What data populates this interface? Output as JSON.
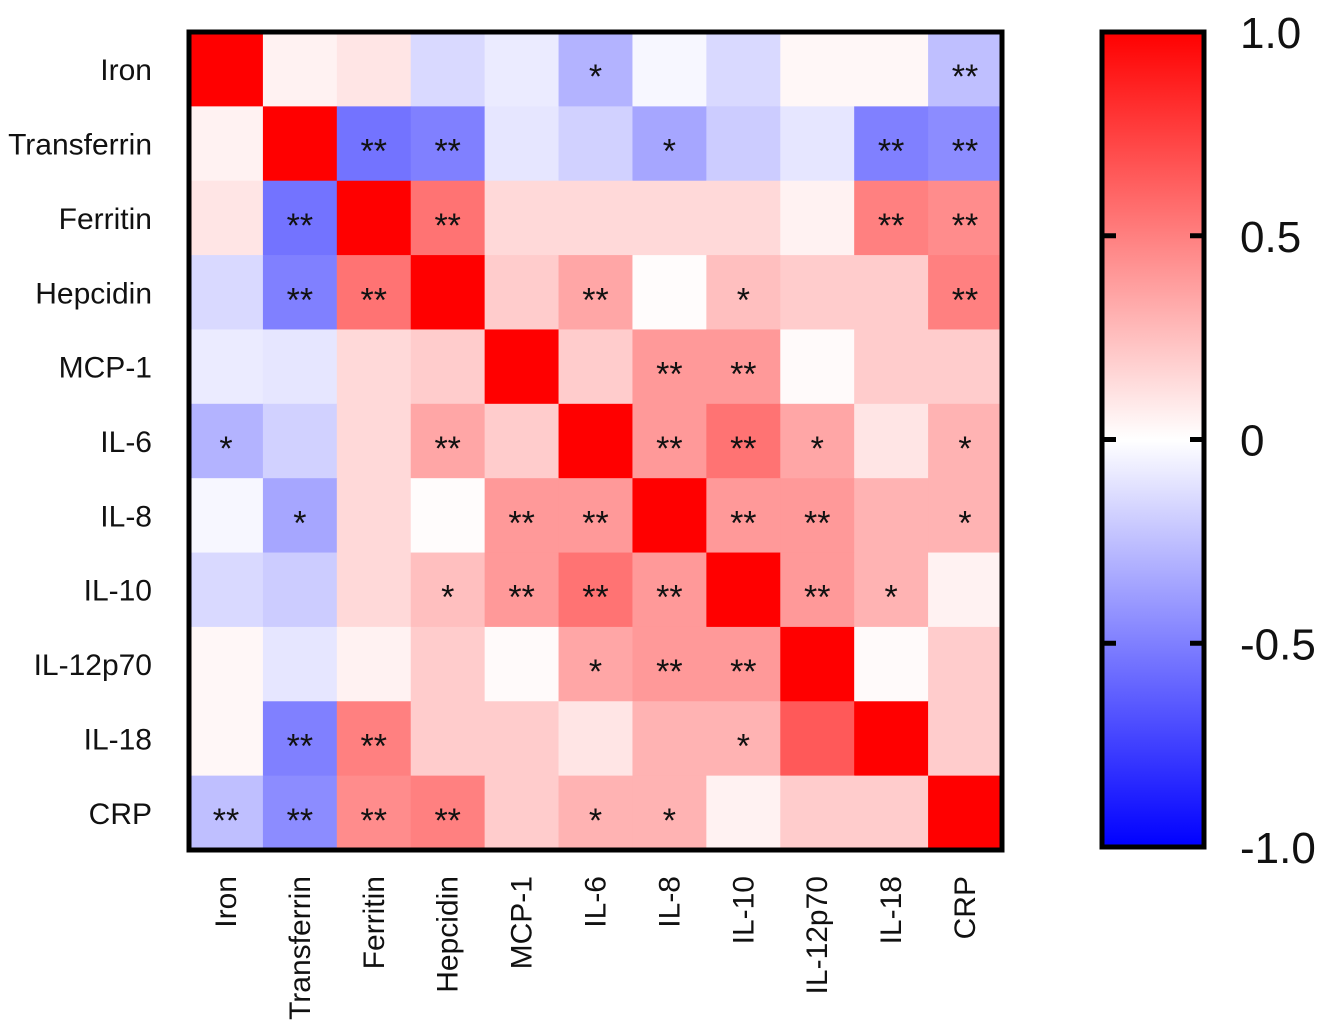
{
  "chart_data": {
    "type": "heatmap",
    "title": "",
    "rows": [
      "Iron",
      "Transferrin",
      "Ferritin",
      "Hepcidin",
      "MCP-1",
      "IL-6",
      "IL-8",
      "IL-10",
      "IL-12p70",
      "IL-18",
      "CRP"
    ],
    "columns": [
      "Iron",
      "Transferrin",
      "Ferritin",
      "Hepcidin",
      "MCP-1",
      "IL-6",
      "IL-8",
      "IL-10",
      "IL-12p70",
      "IL-18",
      "CRP"
    ],
    "values": [
      [
        1.0,
        0.05,
        0.1,
        -0.15,
        -0.08,
        -0.3,
        -0.03,
        -0.15,
        0.03,
        0.03,
        -0.25
      ],
      [
        0.05,
        1.0,
        -0.55,
        -0.5,
        -0.1,
        -0.18,
        -0.35,
        -0.2,
        -0.1,
        -0.5,
        -0.45
      ],
      [
        0.1,
        -0.55,
        1.0,
        0.55,
        0.15,
        0.15,
        0.15,
        0.15,
        0.05,
        0.5,
        0.45
      ],
      [
        -0.15,
        -0.5,
        0.55,
        1.0,
        0.2,
        0.35,
        0.01,
        0.25,
        0.2,
        0.2,
        0.5
      ],
      [
        -0.08,
        -0.1,
        0.15,
        0.2,
        1.0,
        0.2,
        0.4,
        0.4,
        0.02,
        0.2,
        0.2
      ],
      [
        -0.3,
        -0.18,
        0.15,
        0.35,
        0.2,
        1.0,
        0.4,
        0.55,
        0.35,
        0.1,
        0.3
      ],
      [
        -0.03,
        -0.35,
        0.15,
        0.01,
        0.4,
        0.4,
        1.0,
        0.4,
        0.4,
        0.3,
        0.3
      ],
      [
        -0.15,
        -0.2,
        0.15,
        0.25,
        0.4,
        0.55,
        0.4,
        1.0,
        0.4,
        0.3,
        0.05
      ],
      [
        0.03,
        -0.1,
        0.05,
        0.2,
        0.02,
        0.35,
        0.4,
        0.4,
        1.0,
        0.02,
        0.2
      ],
      [
        0.03,
        -0.5,
        0.5,
        0.2,
        0.2,
        0.1,
        0.3,
        0.3,
        0.65,
        1.0,
        0.2
      ],
      [
        -0.25,
        -0.45,
        0.45,
        0.5,
        0.2,
        0.3,
        0.3,
        0.05,
        0.2,
        0.2,
        1.0
      ]
    ],
    "significance": [
      [
        "",
        "",
        "",
        "",
        "",
        "*",
        "",
        "",
        "",
        "",
        "**"
      ],
      [
        "",
        "",
        "**",
        "**",
        "",
        "",
        "*",
        "",
        "",
        "**",
        "**"
      ],
      [
        "",
        "**",
        "",
        "**",
        "",
        "",
        "",
        "",
        "",
        "**",
        "**"
      ],
      [
        "",
        "**",
        "**",
        "",
        "",
        "**",
        "",
        "*",
        "",
        "",
        "**"
      ],
      [
        "",
        "",
        "",
        "",
        "",
        "",
        "**",
        "**",
        "",
        "",
        ""
      ],
      [
        "*",
        "",
        "",
        "**",
        "",
        "",
        "**",
        "**",
        "*",
        "",
        "*"
      ],
      [
        "",
        "*",
        "",
        "",
        "**",
        "**",
        "",
        "**",
        "**",
        "",
        "*"
      ],
      [
        "",
        "",
        "",
        "*",
        "**",
        "**",
        "**",
        "",
        "**",
        "*",
        ""
      ],
      [
        "",
        "",
        "",
        "",
        "",
        "*",
        "**",
        "**",
        "",
        "",
        ""
      ],
      [
        "",
        "**",
        "**",
        "",
        "",
        "",
        "",
        "*",
        "",
        "",
        ""
      ],
      [
        "**",
        "**",
        "**",
        "**",
        "",
        "*",
        "*",
        "",
        "",
        "",
        ""
      ]
    ],
    "colorbar": {
      "range": [
        -1.0,
        1.0
      ],
      "ticks": [
        1.0,
        0.5,
        0,
        -0.5,
        -1.0
      ],
      "tick_labels": [
        "1.0",
        "0.5",
        "0",
        "-0.5",
        "-1.0"
      ],
      "colors": {
        "low": "#0000ff",
        "mid": "#ffffff",
        "high": "#ff0000"
      }
    }
  }
}
